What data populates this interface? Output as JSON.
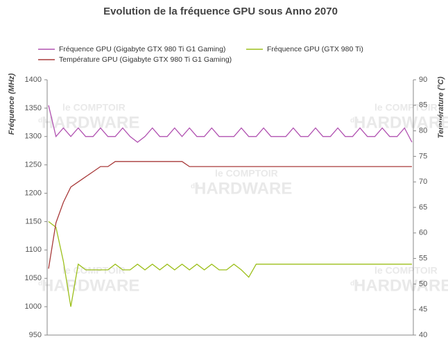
{
  "chart_data": {
    "type": "line",
    "title": "Evolution de la fréquence GPU sous Anno 2070",
    "y_label": "Fréquence (MHz)",
    "y2_label": "Température (°C)",
    "watermark": [
      "le COMPTOIR",
      "du",
      "HARDWARE"
    ],
    "ylim": [
      950,
      1400
    ],
    "yticks": [
      950,
      1000,
      1050,
      1100,
      1150,
      1200,
      1250,
      1300,
      1350,
      1400
    ],
    "y2lim": [
      40,
      90
    ],
    "y2ticks": [
      40,
      45,
      50,
      55,
      60,
      65,
      70,
      75,
      80,
      85,
      90
    ],
    "grid": false,
    "series": [
      {
        "name": "Fréquence GPU (Gigabyte GTX 980 Ti G1 Gaming)",
        "color": "#b050b0",
        "values": [
          1355,
          1300,
          1315,
          1300,
          1315,
          1300,
          1300,
          1315,
          1300,
          1300,
          1315,
          1300,
          1290,
          1300,
          1315,
          1300,
          1300,
          1315,
          1300,
          1315,
          1300,
          1300,
          1315,
          1300,
          1300,
          1300,
          1315,
          1300,
          1300,
          1315,
          1300,
          1300,
          1300,
          1315,
          1300,
          1300,
          1315,
          1300,
          1300,
          1315,
          1300,
          1300,
          1315,
          1300,
          1300,
          1315,
          1300,
          1300,
          1315,
          1290
        ]
      },
      {
        "name": "Fréquence GPU (GTX 980 Ti)",
        "color": "#9cbf1a",
        "values": [
          1150,
          1140,
          1080,
          1000,
          1075,
          1065,
          1065,
          1065,
          1065,
          1075,
          1065,
          1065,
          1075,
          1065,
          1075,
          1065,
          1075,
          1065,
          1075,
          1065,
          1075,
          1065,
          1075,
          1065,
          1065,
          1075,
          1065,
          1052,
          1075,
          1075,
          1075,
          1075,
          1075,
          1075,
          1075,
          1075,
          1075,
          1075,
          1075,
          1075,
          1075,
          1075,
          1075,
          1075,
          1075,
          1075,
          1075,
          1075,
          1075,
          1075
        ]
      },
      {
        "name": "Température GPU  (Gigabyte GTX 980 Ti G1 Gaming)",
        "color": "#a83a3a",
        "axis": "y2",
        "values": [
          53,
          62,
          66,
          69,
          70,
          71,
          72,
          73,
          73,
          74,
          74,
          74,
          74,
          74,
          74,
          74,
          74,
          74,
          74,
          73,
          73,
          73,
          73,
          73,
          73,
          73,
          73,
          73,
          73,
          73,
          73,
          73,
          73,
          73,
          73,
          73,
          73,
          73,
          73,
          73,
          73,
          73,
          73,
          73,
          73,
          73,
          73,
          73,
          73,
          73
        ]
      }
    ]
  }
}
